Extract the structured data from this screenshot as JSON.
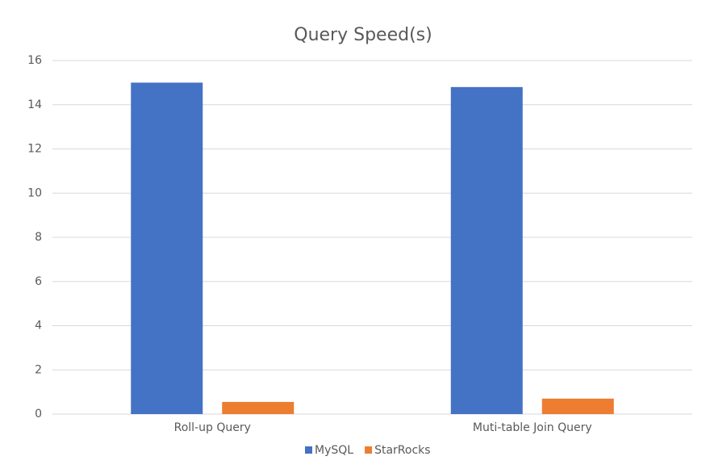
{
  "chart_data": {
    "type": "bar",
    "title": "Query Speed(s)",
    "categories": [
      "Roll-up Query",
      "Muti-table Join Query"
    ],
    "series": [
      {
        "name": "MySQL",
        "color": "#4472c4",
        "values": [
          15,
          14.8
        ]
      },
      {
        "name": "StarRocks",
        "color": "#ed7d31",
        "values": [
          0.55,
          0.7
        ]
      }
    ],
    "ylim": [
      0,
      16
    ],
    "yticks": [
      0,
      2,
      4,
      6,
      8,
      10,
      12,
      14,
      16
    ],
    "grid": true,
    "legend": "bottom"
  }
}
